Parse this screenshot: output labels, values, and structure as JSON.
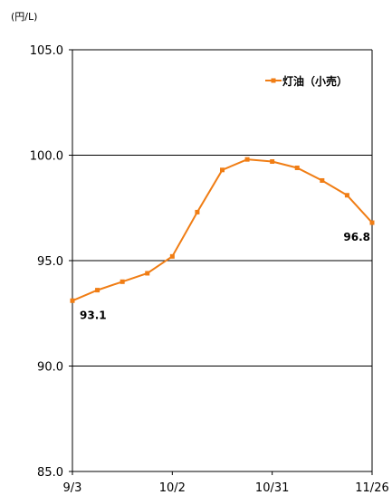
{
  "chart_data": {
    "type": "line",
    "unit_label": "(円/L)",
    "x": [
      "9/3",
      "9/10",
      "9/17",
      "9/24",
      "10/2",
      "10/9",
      "10/16",
      "10/23",
      "10/31",
      "11/6",
      "11/13",
      "11/20",
      "11/26"
    ],
    "x_ticks": [
      "9/3",
      "10/2",
      "10/31",
      "11/26"
    ],
    "ylim": [
      85.0,
      105.0
    ],
    "y_ticks": [
      "85.0",
      "90.0",
      "95.0",
      "100.0",
      "105.0"
    ],
    "gridlines": [
      90.0,
      95.0,
      100.0
    ],
    "series": [
      {
        "name": "灯油（小売）",
        "color": "#f07d14",
        "values": [
          93.1,
          93.6,
          94.0,
          94.4,
          95.2,
          97.3,
          99.3,
          99.8,
          99.7,
          99.4,
          98.8,
          98.1,
          96.8
        ]
      }
    ],
    "data_labels": [
      {
        "index": 0,
        "text": "93.1"
      },
      {
        "index": 12,
        "text": "96.8"
      }
    ],
    "legend_position": "top-right"
  }
}
